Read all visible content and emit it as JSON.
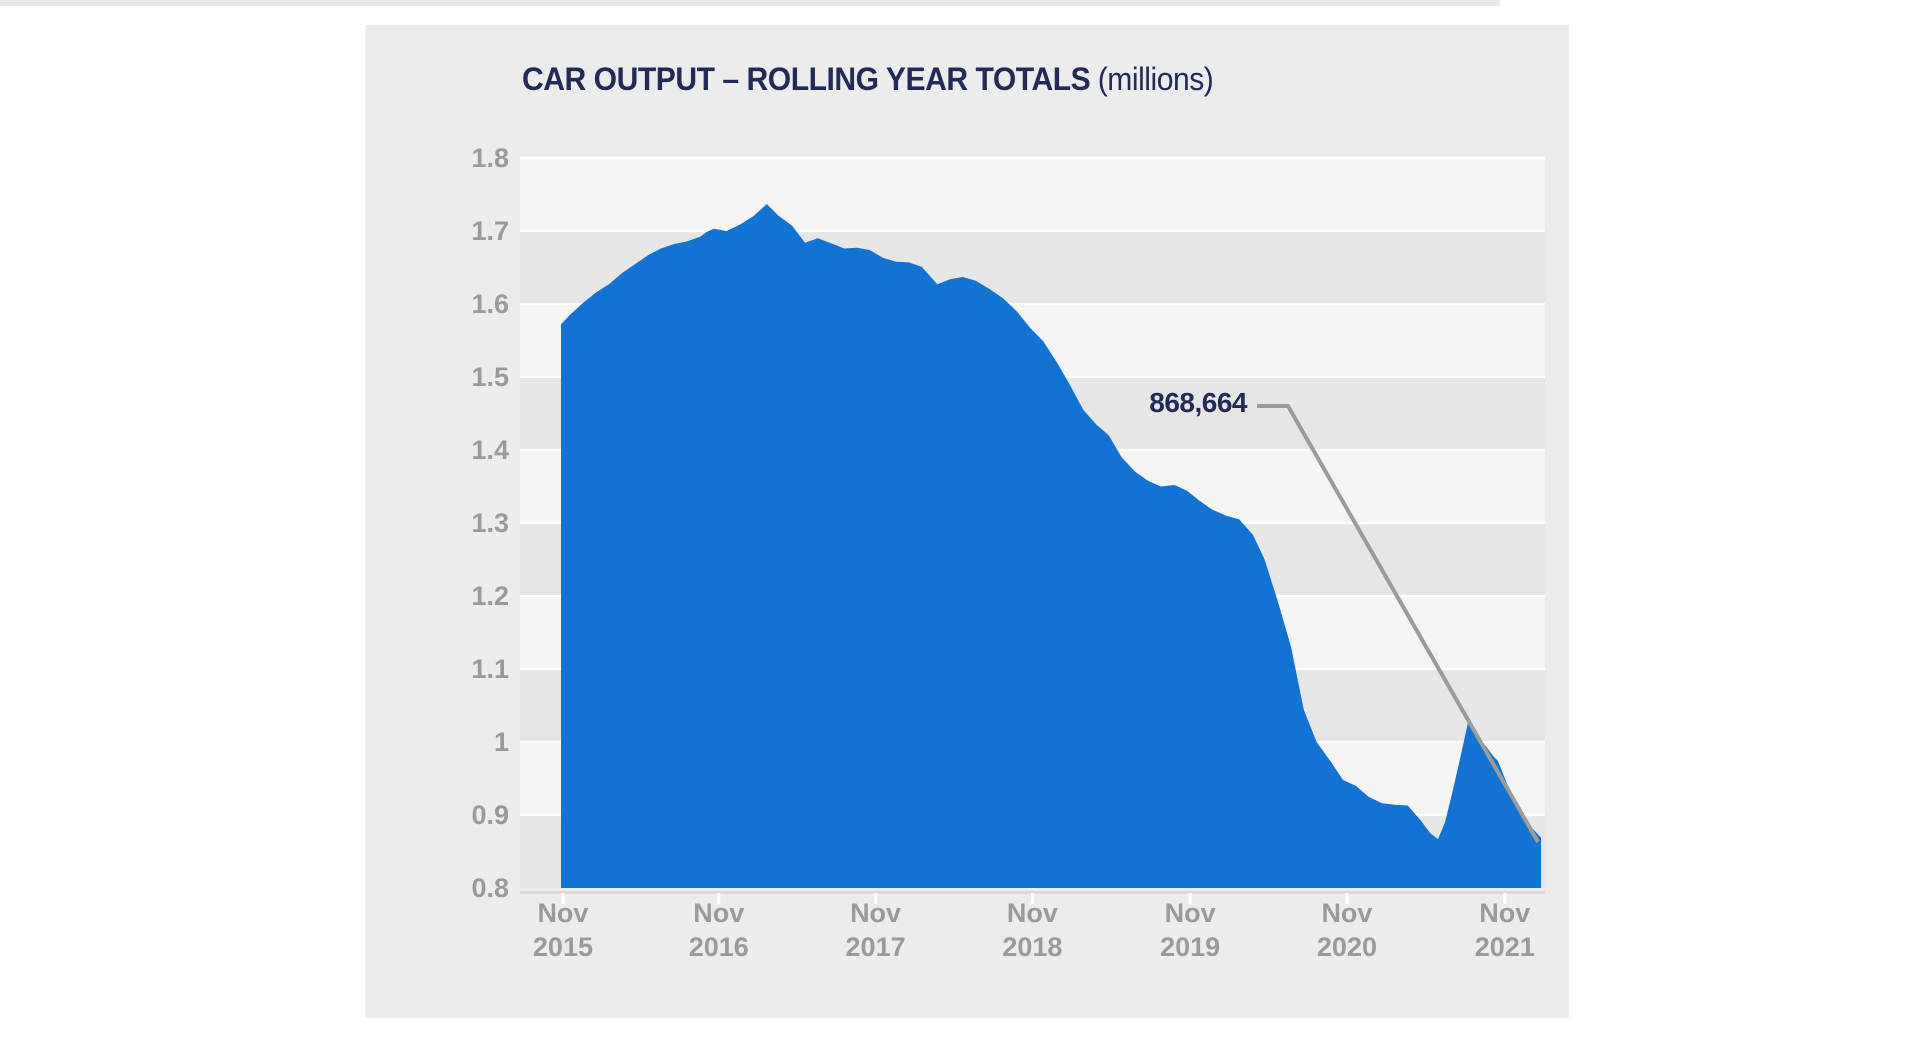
{
  "page": {
    "background": "#ffffff",
    "top_strip_color": "#e9e9e9",
    "panel_background": "#ececec"
  },
  "header": {
    "title": "CAR OUTPUT – ROLLING YEAR TOTALS",
    "unit_suffix": "(millions)"
  },
  "chart_data": {
    "type": "area",
    "title": "CAR OUTPUT – ROLLING YEAR TOTALS (millions)",
    "series_name": "Car output rolling year total (millions)",
    "ylim": [
      0.8,
      1.8
    ],
    "xlabel": "",
    "ylabel": "",
    "legend": "none",
    "grid": "white horizontal gridlines every 0.1 with alternating shaded bands",
    "y_tick_labels": [
      "1.8",
      "1.7",
      "1.6",
      "1.5",
      "1.4",
      "1.3",
      "1.2",
      "1.1",
      "1",
      "0.9",
      "0.8"
    ],
    "y_tick_values": [
      1.8,
      1.7,
      1.6,
      1.5,
      1.4,
      1.3,
      1.2,
      1.1,
      1.0,
      0.9,
      0.8
    ],
    "x_tick_labels": [
      {
        "line1": "Nov",
        "line2": "2015",
        "f": 0.002
      },
      {
        "line1": "Nov",
        "line2": "2016",
        "f": 0.161
      },
      {
        "line1": "Nov",
        "line2": "2017",
        "f": 0.321
      },
      {
        "line1": "Nov",
        "line2": "2018",
        "f": 0.481
      },
      {
        "line1": "Nov",
        "line2": "2019",
        "f": 0.642
      },
      {
        "line1": "Nov",
        "line2": "2020",
        "f": 0.802
      },
      {
        "line1": "Nov",
        "line2": "2021",
        "f": 0.963
      }
    ],
    "points": [
      [
        0.0,
        1.572
      ],
      [
        0.009,
        1.585
      ],
      [
        0.022,
        1.601
      ],
      [
        0.036,
        1.616
      ],
      [
        0.049,
        1.627
      ],
      [
        0.062,
        1.642
      ],
      [
        0.076,
        1.655
      ],
      [
        0.089,
        1.667
      ],
      [
        0.102,
        1.676
      ],
      [
        0.115,
        1.682
      ],
      [
        0.129,
        1.686
      ],
      [
        0.142,
        1.692
      ],
      [
        0.149,
        1.699
      ],
      [
        0.156,
        1.703
      ],
      [
        0.169,
        1.7
      ],
      [
        0.183,
        1.709
      ],
      [
        0.196,
        1.72
      ],
      [
        0.21,
        1.737
      ],
      [
        0.222,
        1.721
      ],
      [
        0.236,
        1.707
      ],
      [
        0.249,
        1.684
      ],
      [
        0.262,
        1.69
      ],
      [
        0.276,
        1.683
      ],
      [
        0.289,
        1.676
      ],
      [
        0.302,
        1.677
      ],
      [
        0.315,
        1.674
      ],
      [
        0.329,
        1.663
      ],
      [
        0.342,
        1.658
      ],
      [
        0.355,
        1.657
      ],
      [
        0.368,
        1.651
      ],
      [
        0.384,
        1.627
      ],
      [
        0.397,
        1.634
      ],
      [
        0.41,
        1.637
      ],
      [
        0.423,
        1.632
      ],
      [
        0.438,
        1.62
      ],
      [
        0.451,
        1.608
      ],
      [
        0.465,
        1.59
      ],
      [
        0.479,
        1.567
      ],
      [
        0.492,
        1.549
      ],
      [
        0.506,
        1.52
      ],
      [
        0.519,
        1.49
      ],
      [
        0.533,
        1.455
      ],
      [
        0.546,
        1.435
      ],
      [
        0.559,
        1.42
      ],
      [
        0.572,
        1.39
      ],
      [
        0.586,
        1.37
      ],
      [
        0.599,
        1.358
      ],
      [
        0.612,
        1.35
      ],
      [
        0.626,
        1.352
      ],
      [
        0.639,
        1.344
      ],
      [
        0.652,
        1.33
      ],
      [
        0.665,
        1.318
      ],
      [
        0.679,
        1.31
      ],
      [
        0.692,
        1.305
      ],
      [
        0.706,
        1.284
      ],
      [
        0.718,
        1.25
      ],
      [
        0.732,
        1.19
      ],
      [
        0.745,
        1.13
      ],
      [
        0.758,
        1.044
      ],
      [
        0.771,
        1.0
      ],
      [
        0.785,
        0.974
      ],
      [
        0.798,
        0.948
      ],
      [
        0.811,
        0.94
      ],
      [
        0.824,
        0.925
      ],
      [
        0.838,
        0.916
      ],
      [
        0.851,
        0.914
      ],
      [
        0.864,
        0.913
      ],
      [
        0.877,
        0.893
      ],
      [
        0.887,
        0.875
      ],
      [
        0.895,
        0.867
      ],
      [
        0.902,
        0.89
      ],
      [
        0.909,
        0.928
      ],
      [
        0.917,
        0.975
      ],
      [
        0.926,
        1.03
      ],
      [
        0.932,
        1.02
      ],
      [
        0.939,
        1.0
      ],
      [
        0.944,
        0.994
      ],
      [
        0.951,
        0.981
      ],
      [
        0.956,
        0.974
      ],
      [
        0.966,
        0.941
      ],
      [
        0.977,
        0.914
      ],
      [
        0.987,
        0.888
      ],
      [
        1.0,
        0.8687
      ]
    ],
    "annotation": {
      "text": "868,664",
      "value_millions": 0.868664,
      "target": "final data point"
    },
    "colors": {
      "area": "#1273d2",
      "band_light": "#f4f4f4",
      "band_dark": "#e6e6e6",
      "gridline": "#ffffff",
      "baseline": "#d9d9d9",
      "tick": "#ffffff",
      "axis_labels": "#9a9a9a",
      "callout_line": "#9b9b9b",
      "annotation_text": "#222b58"
    }
  }
}
